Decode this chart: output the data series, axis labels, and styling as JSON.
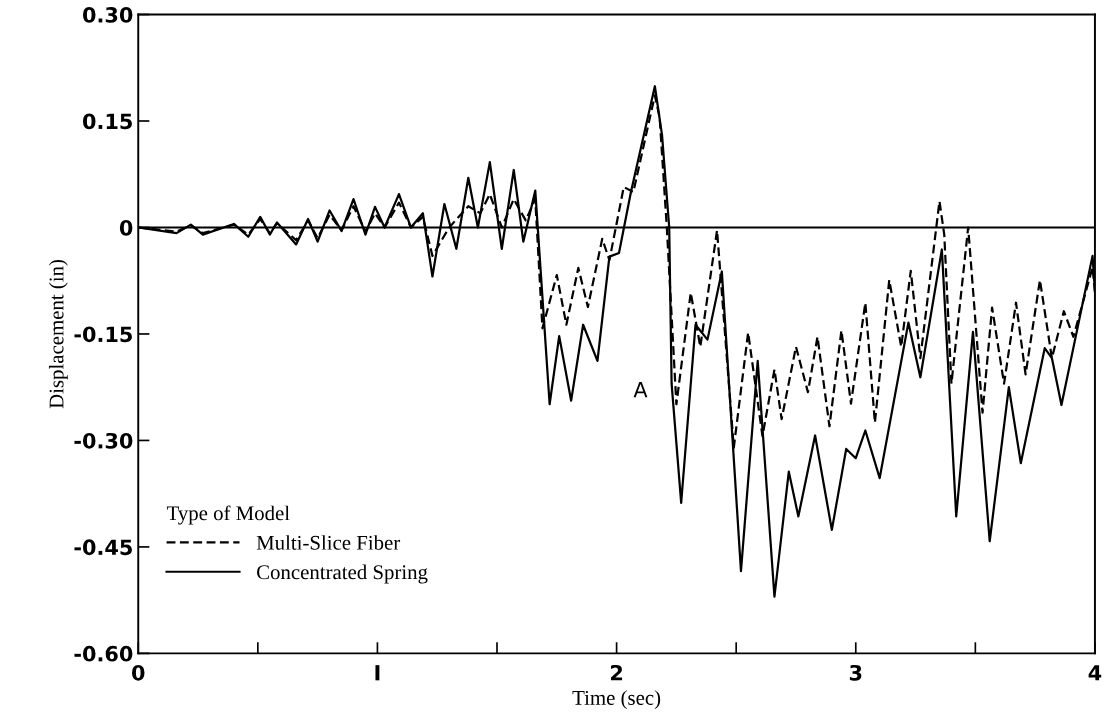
{
  "chart_data": {
    "type": "line",
    "xlabel": "Time (sec)",
    "ylabel": "Displacement (in)",
    "legend_title": "Type of Model",
    "legend": "bottom left",
    "grid": false,
    "xlim": [
      0,
      4
    ],
    "ylim": [
      -0.6,
      0.3
    ],
    "xticks": [
      0,
      {
        "value": 0.5,
        "label": null
      },
      {
        "value": 1,
        "label": "I"
      },
      {
        "value": 1.5,
        "label": null
      },
      2,
      {
        "value": 2.5,
        "label": null
      },
      3,
      {
        "value": 3.5,
        "label": null
      },
      4
    ],
    "yticks": [
      {
        "value": -0.6,
        "label": "-0.60"
      },
      {
        "value": -0.45,
        "label": "-0.45"
      },
      {
        "value": -0.3,
        "label": "-0.30"
      },
      {
        "value": -0.15,
        "label": "-0.15"
      },
      0,
      {
        "value": 0.15,
        "label": "0.15"
      },
      {
        "value": 0.3,
        "label": "0.30"
      }
    ],
    "ref_lines": [
      {
        "axis": "y",
        "value": 0,
        "color": "#000000",
        "line_style": "solid"
      }
    ],
    "annotations": [
      "A"
    ],
    "series": [
      {
        "name": "Multi-Slice Fiber",
        "color": "#000000",
        "line_style": "dashed",
        "x": [
          0,
          0.16,
          0.22,
          0.27,
          0.4,
          0.46,
          0.51,
          0.55,
          0.58,
          0.66,
          0.71,
          0.75,
          0.8,
          0.85,
          0.9,
          0.95,
          0.99,
          1.03,
          1.09,
          1.14,
          1.19,
          1.23,
          1.3,
          1.38,
          1.43,
          1.47,
          1.52,
          1.57,
          1.62,
          1.66,
          1.69,
          1.75,
          1.79,
          1.84,
          1.88,
          1.94,
          1.97,
          2.03,
          2.07,
          2.16,
          2.18,
          2.21,
          2.25,
          2.31,
          2.35,
          2.42,
          2.49,
          2.55,
          2.61,
          2.66,
          2.69,
          2.75,
          2.8,
          2.84,
          2.89,
          2.94,
          2.98,
          3.04,
          3.08,
          3.14,
          3.19,
          3.23,
          3.27,
          3.35,
          3.37,
          3.4,
          3.47,
          3.53,
          3.57,
          3.62,
          3.67,
          3.71,
          3.77,
          3.82,
          3.87,
          3.91,
          3.99,
          4.0
        ],
        "values": [
          0,
          -0.006,
          0.003,
          -0.008,
          0.004,
          -0.01,
          0.012,
          -0.008,
          0.006,
          -0.018,
          0.01,
          -0.015,
          0.018,
          -0.004,
          0.03,
          -0.006,
          0.02,
          0.0,
          0.035,
          0.0,
          0.015,
          -0.04,
          0.0,
          0.03,
          0.02,
          0.047,
          0.0,
          0.04,
          0.01,
          0.04,
          -0.142,
          -0.067,
          -0.137,
          -0.057,
          -0.112,
          -0.016,
          -0.046,
          0.057,
          0.05,
          0.186,
          0.155,
          0,
          -0.249,
          -0.092,
          -0.168,
          -0.004,
          -0.31,
          -0.148,
          -0.294,
          -0.2,
          -0.27,
          -0.168,
          -0.232,
          -0.154,
          -0.28,
          -0.145,
          -0.248,
          -0.106,
          -0.275,
          -0.074,
          -0.168,
          -0.061,
          -0.184,
          0.037,
          -0.01,
          -0.22,
          0.0,
          -0.261,
          -0.113,
          -0.22,
          -0.106,
          -0.207,
          -0.074,
          -0.184,
          -0.118,
          -0.154,
          -0.056,
          -0.09
        ]
      },
      {
        "name": "Concentrated Spring",
        "color": "#000000",
        "line_style": "solid",
        "x": [
          0,
          0.16,
          0.22,
          0.27,
          0.4,
          0.46,
          0.51,
          0.55,
          0.58,
          0.66,
          0.71,
          0.75,
          0.8,
          0.85,
          0.9,
          0.95,
          0.99,
          1.03,
          1.09,
          1.14,
          1.19,
          1.23,
          1.28,
          1.33,
          1.38,
          1.42,
          1.47,
          1.52,
          1.57,
          1.61,
          1.66,
          1.72,
          1.76,
          1.81,
          1.86,
          1.92,
          1.97,
          2.01,
          2.06,
          2.16,
          2.19,
          2.22,
          2.23,
          2.27,
          2.33,
          2.38,
          2.44,
          2.52,
          2.59,
          2.66,
          2.72,
          2.76,
          2.83,
          2.9,
          2.96,
          3.0,
          3.04,
          3.1,
          3.22,
          3.27,
          3.36,
          3.42,
          3.49,
          3.56,
          3.64,
          3.69,
          3.79,
          3.82,
          3.86,
          3.99,
          4.0
        ],
        "values": [
          0,
          -0.008,
          0.004,
          -0.01,
          0.005,
          -0.013,
          0.015,
          -0.01,
          0.007,
          -0.024,
          0.012,
          -0.02,
          0.024,
          -0.005,
          0.04,
          -0.01,
          0.029,
          0.0,
          0.047,
          0.0,
          0.02,
          -0.069,
          0.033,
          -0.03,
          0.07,
          0.0,
          0.092,
          -0.03,
          0.081,
          -0.02,
          0.052,
          -0.249,
          -0.153,
          -0.244,
          -0.137,
          -0.188,
          -0.041,
          -0.036,
          0.05,
          0.199,
          0.13,
          0,
          -0.22,
          -0.388,
          -0.137,
          -0.158,
          -0.062,
          -0.484,
          -0.188,
          -0.52,
          -0.344,
          -0.407,
          -0.293,
          -0.426,
          -0.312,
          -0.325,
          -0.286,
          -0.353,
          -0.134,
          -0.211,
          -0.031,
          -0.407,
          -0.147,
          -0.442,
          -0.225,
          -0.332,
          -0.17,
          -0.184,
          -0.25,
          -0.04,
          -0.09
        ]
      }
    ]
  }
}
